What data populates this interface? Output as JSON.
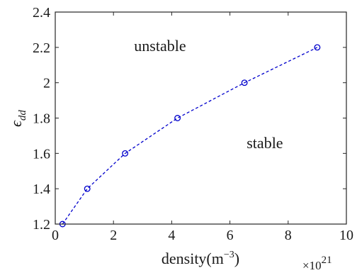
{
  "chart_data": {
    "type": "line",
    "title": "",
    "xlabel_base": "density(m",
    "xlabel_exp": "−3",
    "xlabel_close": ")",
    "ylabel_base": "ϵ",
    "ylabel_sub": "dd",
    "x_multiplier_base": "×10",
    "x_multiplier_exp": "21",
    "xlim": [
      0,
      10
    ],
    "ylim": [
      1.2,
      2.4
    ],
    "x_ticks": [
      0,
      2,
      4,
      6,
      8,
      10
    ],
    "x_tick_labels": [
      "0",
      "2",
      "4",
      "6",
      "8",
      "10"
    ],
    "y_ticks": [
      1.2,
      1.4,
      1.6,
      1.8,
      2.0,
      2.2,
      2.4
    ],
    "y_tick_labels": [
      "1.2",
      "1.4",
      "1.6",
      "1.8",
      "2",
      "2.2",
      "2.4"
    ],
    "grid": false,
    "line_style": "dashed",
    "marker": "circle",
    "color": "#0000cc",
    "series": [
      {
        "x": [
          0.25,
          1.1,
          2.4,
          4.2,
          6.5,
          9.0
        ],
        "y": [
          1.2,
          1.4,
          1.6,
          1.8,
          2.0,
          2.2
        ]
      }
    ],
    "annotations": [
      {
        "text": "unstable",
        "x": 3.6,
        "y": 2.18
      },
      {
        "text": "stable",
        "x": 7.2,
        "y": 1.63
      }
    ]
  }
}
